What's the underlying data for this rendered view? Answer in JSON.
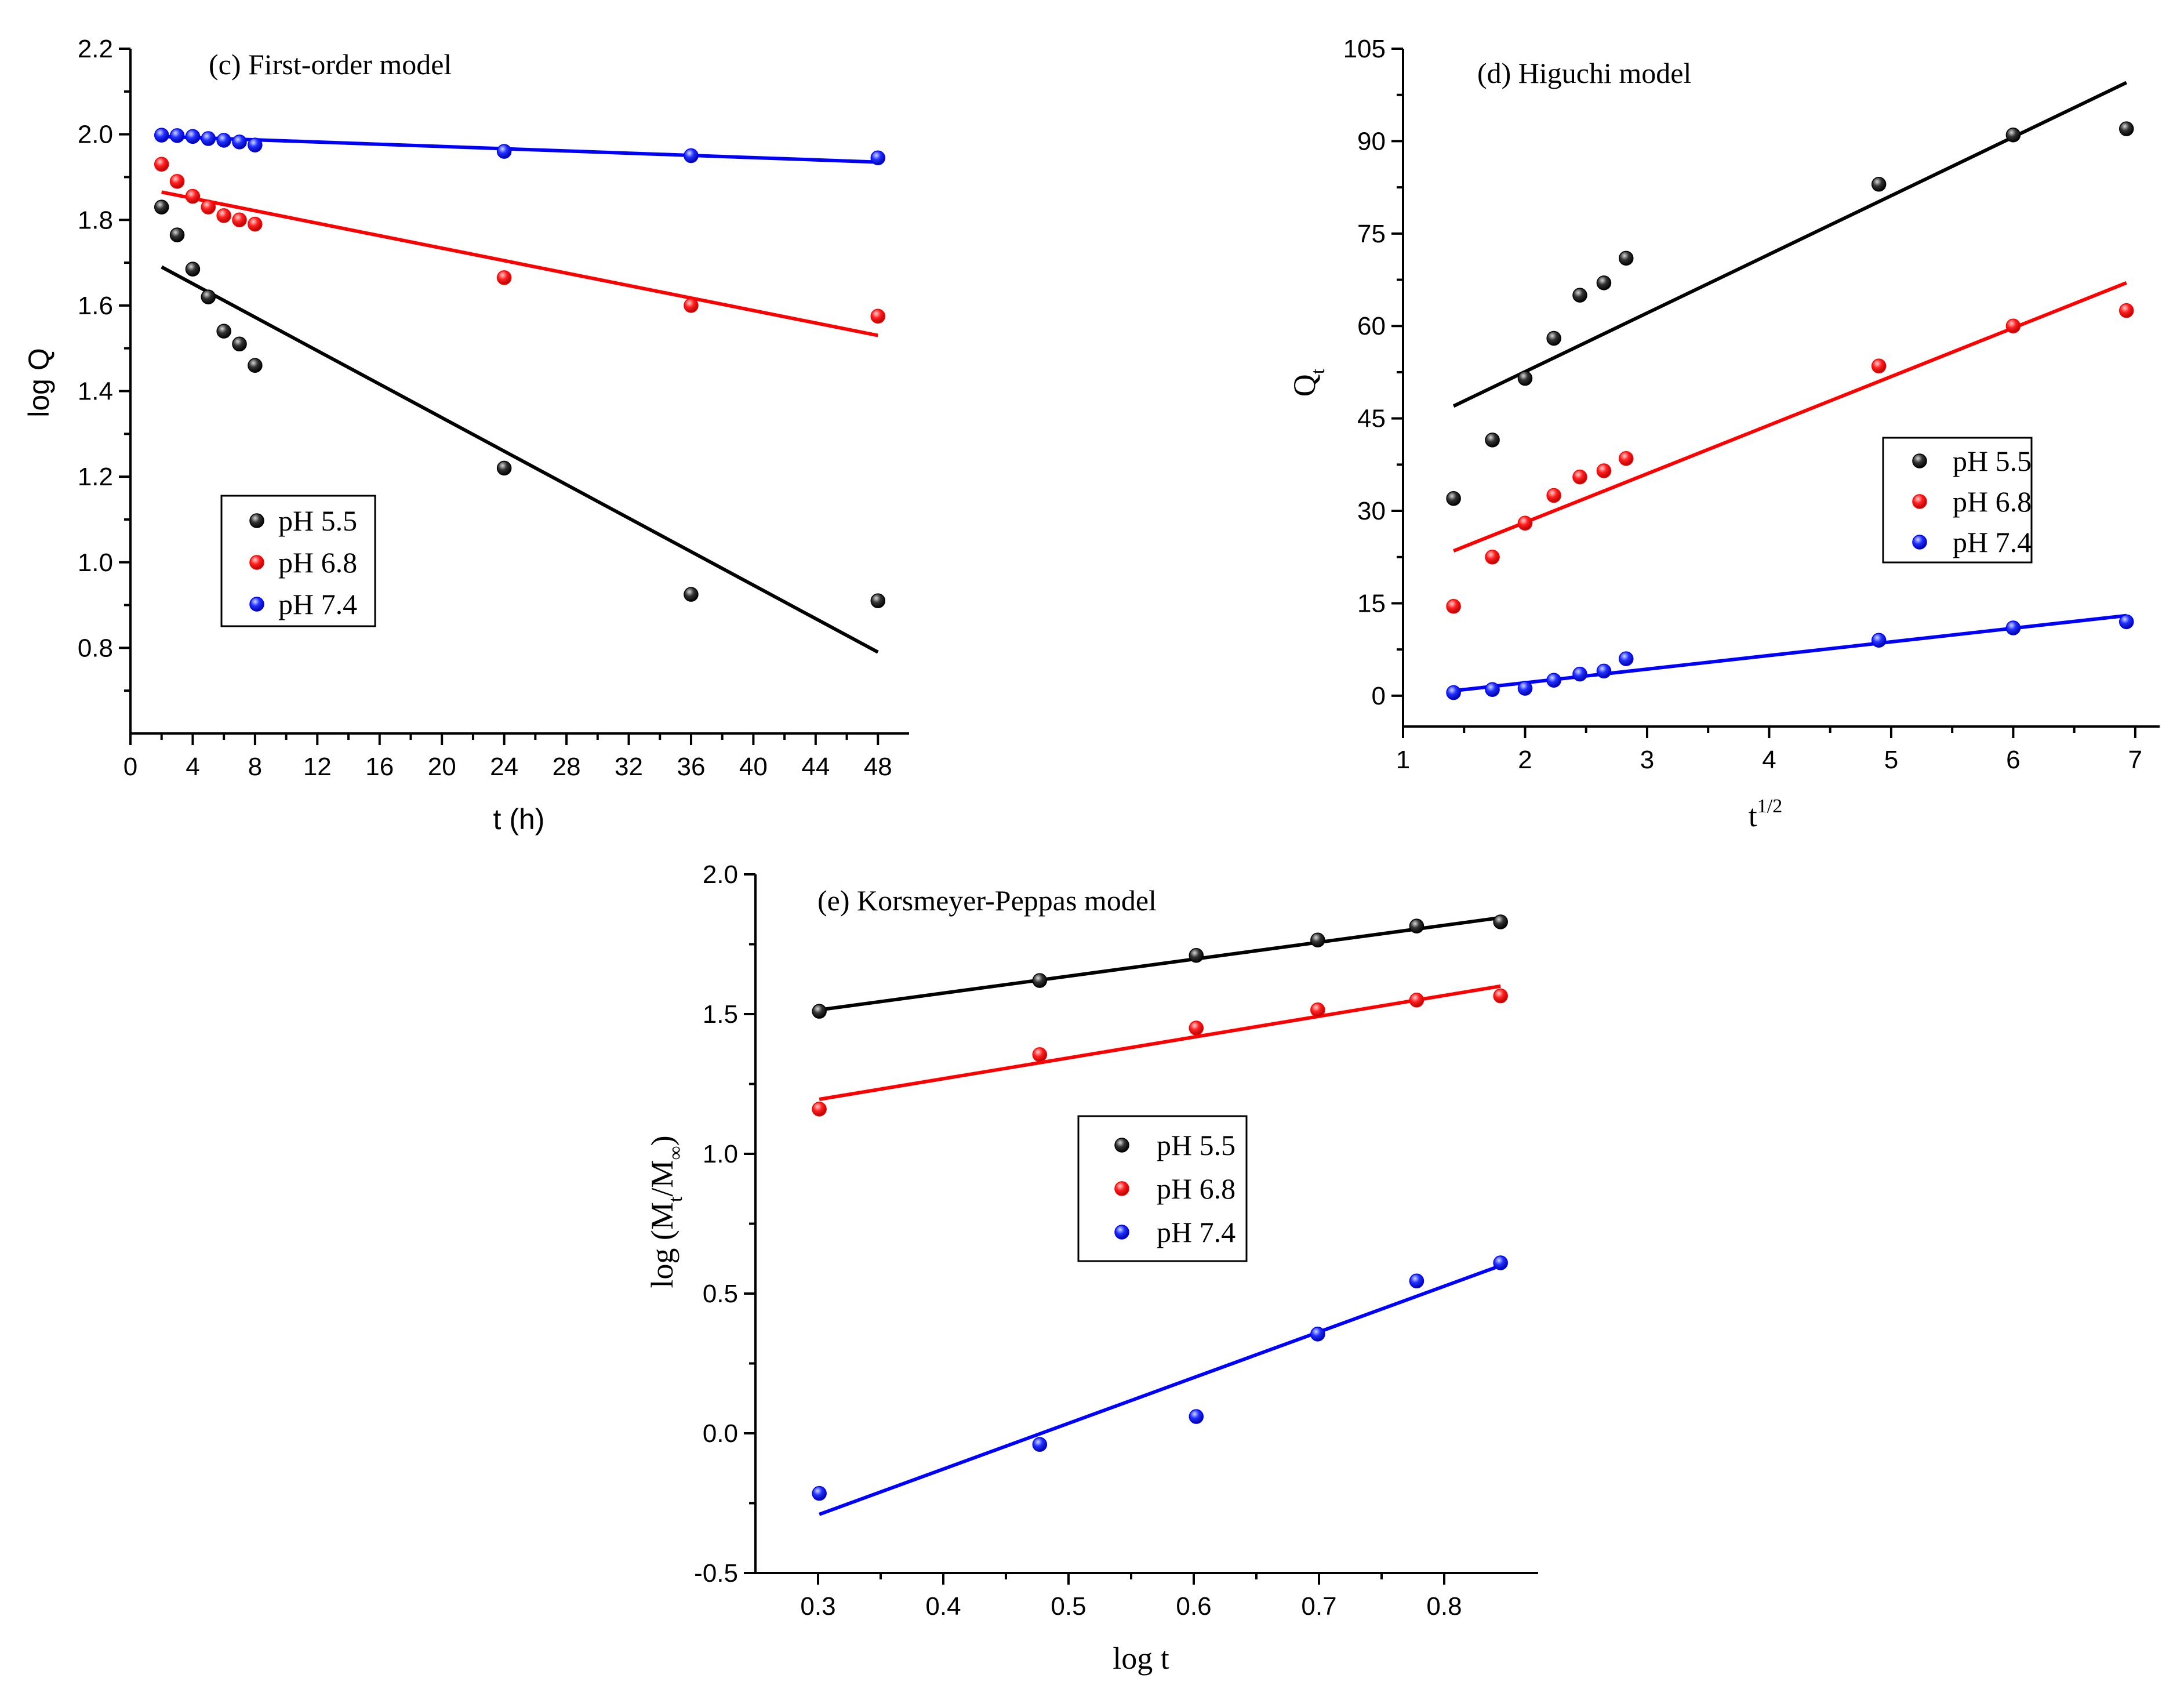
{
  "colors": {
    "pH 5.5": "#000000",
    "pH 6.8": "#ff0000",
    "pH 7.4": "#0000ff"
  },
  "chart_data": [
    {
      "id": "c",
      "type": "scatter",
      "title": "(c)  First-order model",
      "xlabel": "t (h)",
      "ylabel": "log Q",
      "xlim": [
        0,
        50
      ],
      "ylim": [
        0.6,
        2.2
      ],
      "xticks": [
        0,
        4,
        8,
        12,
        16,
        20,
        24,
        28,
        32,
        36,
        40,
        44,
        48
      ],
      "xtick_labels": [
        "0",
        "4",
        "8",
        "12",
        "16",
        "20",
        "24",
        "28",
        "32",
        "36",
        "40",
        "44",
        "48"
      ],
      "yticks": [
        0.8,
        1.0,
        1.2,
        1.4,
        1.6,
        1.8,
        2.0,
        2.2
      ],
      "ytick_labels": [
        "0.8",
        "1.0",
        "1.2",
        "1.4",
        "1.6",
        "1.8",
        "2.0",
        "2.2"
      ],
      "legend_position": "middle-left",
      "series": [
        {
          "name": "pH 5.5",
          "x": [
            2,
            3,
            4,
            5,
            6,
            7,
            8,
            24,
            36,
            48
          ],
          "y": [
            1.83,
            1.765,
            1.685,
            1.62,
            1.54,
            1.51,
            1.46,
            1.22,
            0.925,
            0.91
          ],
          "fit": [
            [
              2,
              1.69
            ],
            [
              48,
              0.79
            ]
          ]
        },
        {
          "name": "pH 6.8",
          "x": [
            2,
            3,
            4,
            5,
            6,
            7,
            8,
            24,
            36,
            48
          ],
          "y": [
            1.93,
            1.89,
            1.855,
            1.83,
            1.81,
            1.8,
            1.79,
            1.665,
            1.6,
            1.575
          ],
          "fit": [
            [
              2,
              1.865
            ],
            [
              48,
              1.53
            ]
          ]
        },
        {
          "name": "pH 7.4",
          "x": [
            2,
            3,
            4,
            5,
            6,
            7,
            8,
            24,
            36,
            48
          ],
          "y": [
            1.998,
            1.997,
            1.995,
            1.99,
            1.986,
            1.982,
            1.975,
            1.96,
            1.95,
            1.945
          ],
          "fit": [
            [
              2,
              1.995
            ],
            [
              48,
              1.935
            ]
          ]
        }
      ]
    },
    {
      "id": "d",
      "type": "scatter",
      "title": "(d)  Higuchi model",
      "xlabel": "t",
      "xlabel_sup": "1/2",
      "ylabel": "Q",
      "ylabel_sub": "t",
      "xlim": [
        1,
        7.2
      ],
      "ylim": [
        -5,
        105
      ],
      "xticks": [
        1,
        2,
        3,
        4,
        5,
        6,
        7
      ],
      "xtick_labels": [
        "1",
        "2",
        "3",
        "4",
        "5",
        "6",
        "7"
      ],
      "yticks": [
        0,
        15,
        30,
        45,
        60,
        75,
        90,
        105
      ],
      "ytick_labels": [
        "0",
        "15",
        "30",
        "45",
        "60",
        "75",
        "90",
        "105"
      ],
      "legend_position": "middle-right",
      "series": [
        {
          "name": "pH 5.5",
          "x": [
            1.414,
            1.732,
            2.0,
            2.236,
            2.449,
            2.646,
            2.828,
            4.899,
            6.0,
            6.928
          ],
          "y": [
            32,
            41.5,
            51.5,
            58,
            65,
            67,
            71,
            83,
            91,
            92
          ],
          "fit": [
            [
              1.414,
              47
            ],
            [
              6.928,
              99.5
            ]
          ]
        },
        {
          "name": "pH 6.8",
          "x": [
            1.414,
            1.732,
            2.0,
            2.236,
            2.449,
            2.646,
            2.828,
            4.899,
            6.0,
            6.928
          ],
          "y": [
            14.5,
            22.5,
            28,
            32.5,
            35.5,
            36.5,
            38.5,
            53.5,
            60,
            62.5
          ],
          "fit": [
            [
              1.414,
              23.5
            ],
            [
              6.928,
              67
            ]
          ]
        },
        {
          "name": "pH 7.4",
          "x": [
            1.414,
            1.732,
            2.0,
            2.236,
            2.449,
            2.646,
            2.828,
            4.899,
            6.0,
            6.928
          ],
          "y": [
            0.5,
            1,
            1.2,
            2.5,
            3.5,
            4,
            6,
            9,
            11,
            12
          ],
          "fit": [
            [
              1.414,
              0.8
            ],
            [
              6.928,
              13
            ]
          ]
        }
      ]
    },
    {
      "id": "e",
      "type": "scatter",
      "title": "(e)  Korsmeyer-Peppas model",
      "xlabel": "log t",
      "ylabel_pre": "log (M",
      "ylabel_sub1": "t",
      "ylabel_mid": "/M",
      "ylabel_sub2": "∞",
      "ylabel_post": ")",
      "xlim": [
        0.25,
        0.875
      ],
      "ylim": [
        -0.5,
        2.0
      ],
      "xticks": [
        0.3,
        0.4,
        0.5,
        0.6,
        0.7,
        0.8
      ],
      "xtick_labels": [
        "0.3",
        "0.4",
        "0.5",
        "0.6",
        "0.7",
        "0.8"
      ],
      "yticks": [
        -0.5,
        0.0,
        0.5,
        1.0,
        1.5,
        2.0
      ],
      "ytick_labels": [
        "-0.5",
        "0.0",
        "0.5",
        "1.0",
        "1.5",
        "2.0"
      ],
      "legend_position": "middle-center",
      "series": [
        {
          "name": "pH 5.5",
          "x": [
            0.301,
            0.477,
            0.602,
            0.699,
            0.778,
            0.845
          ],
          "y": [
            1.51,
            1.62,
            1.71,
            1.765,
            1.815,
            1.83
          ],
          "fit": [
            [
              0.301,
              1.515
            ],
            [
              0.845,
              1.845
            ]
          ]
        },
        {
          "name": "pH 6.8",
          "x": [
            0.301,
            0.477,
            0.602,
            0.699,
            0.778,
            0.845
          ],
          "y": [
            1.16,
            1.355,
            1.45,
            1.515,
            1.55,
            1.565
          ],
          "fit": [
            [
              0.301,
              1.195
            ],
            [
              0.845,
              1.6
            ]
          ]
        },
        {
          "name": "pH 7.4",
          "x": [
            0.301,
            0.477,
            0.602,
            0.699,
            0.778,
            0.845
          ],
          "y": [
            -0.215,
            -0.04,
            0.06,
            0.355,
            0.545,
            0.61
          ],
          "fit": [
            [
              0.301,
              -0.29
            ],
            [
              0.845,
              0.6
            ]
          ]
        }
      ]
    }
  ]
}
